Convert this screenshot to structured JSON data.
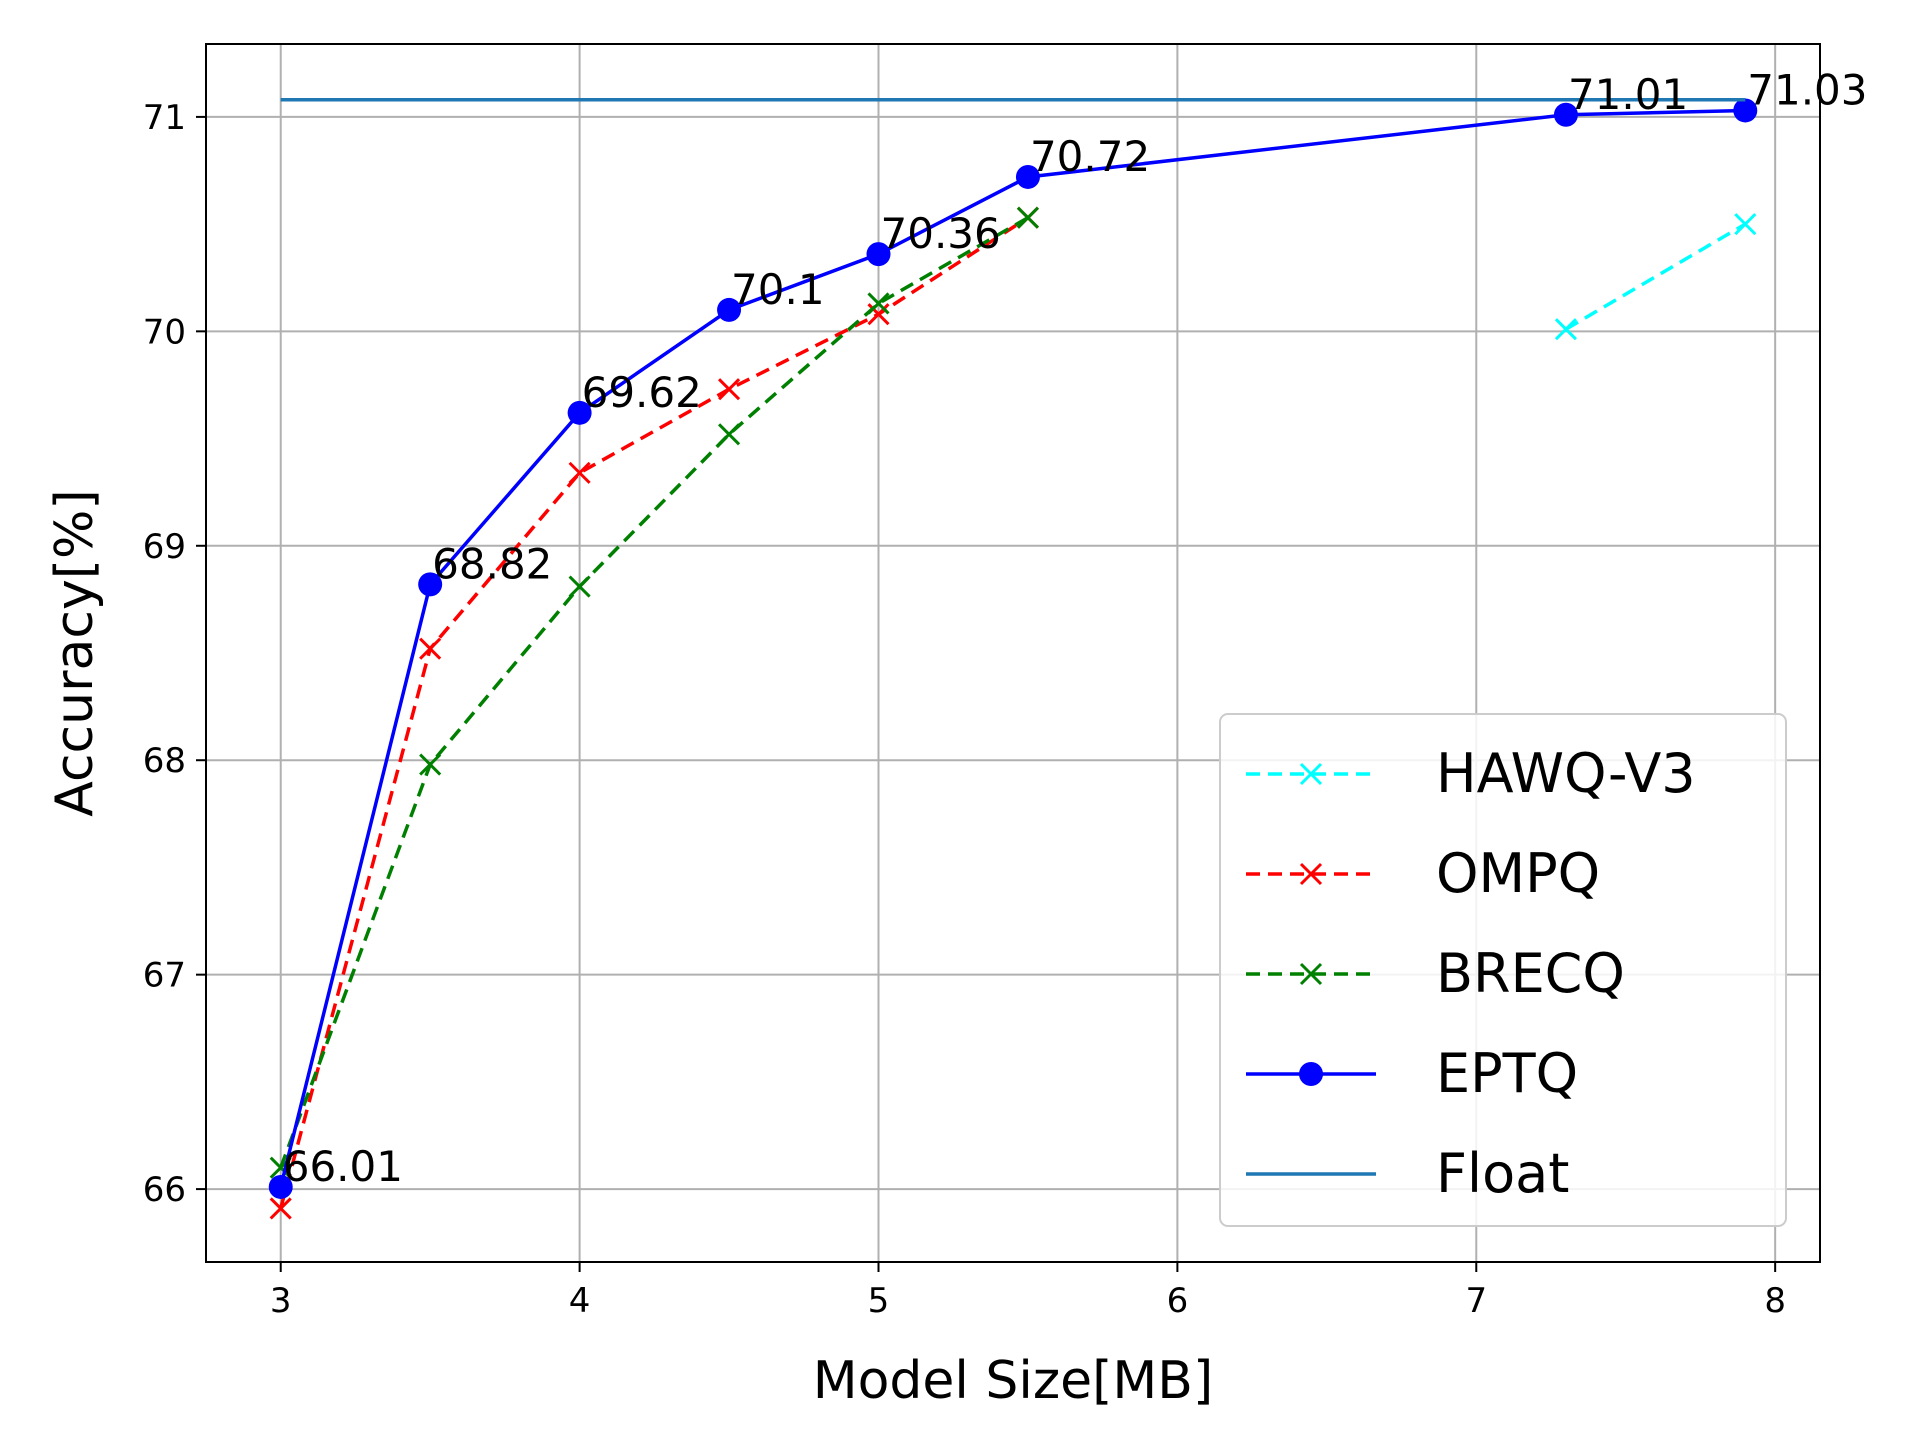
{
  "chart_data": {
    "type": "line",
    "title": "",
    "xlabel": "Model Size[MB]",
    "ylabel": "Accuracy[%]",
    "xlim": [
      2.75,
      8.15
    ],
    "ylim": [
      65.66,
      71.34
    ],
    "grid": true,
    "legend_position": "lower-right",
    "xticks": [
      3,
      4,
      5,
      6,
      7,
      8
    ],
    "yticks": [
      66,
      67,
      68,
      69,
      70,
      71
    ],
    "series": [
      {
        "name": "HAWQ-V3",
        "color": "#00ffff",
        "linestyle": "dashed",
        "marker": "x",
        "x": [
          7.3,
          7.9
        ],
        "y": [
          70.01,
          70.5
        ]
      },
      {
        "name": "OMPQ",
        "color": "#ff0000",
        "linestyle": "dashed",
        "marker": "x",
        "x": [
          3.0,
          3.5,
          4.0,
          4.5,
          5.0,
          5.5
        ],
        "y": [
          65.91,
          68.52,
          69.34,
          69.73,
          70.08,
          70.53
        ]
      },
      {
        "name": "BRECQ",
        "color": "#008000",
        "linestyle": "dashed",
        "marker": "x",
        "x": [
          3.0,
          3.5,
          4.0,
          4.5,
          5.0,
          5.5
        ],
        "y": [
          66.1,
          67.98,
          68.81,
          69.52,
          70.13,
          70.53
        ]
      },
      {
        "name": "EPTQ",
        "color": "#0000ff",
        "linestyle": "solid",
        "marker": "o",
        "x": [
          3.0,
          3.5,
          4.0,
          4.5,
          5.0,
          5.5,
          7.3,
          7.9
        ],
        "y": [
          66.01,
          68.82,
          69.62,
          70.1,
          70.36,
          70.72,
          71.01,
          71.03
        ],
        "labels": [
          "66.01",
          "68.82",
          "69.62",
          "70.1",
          "70.36",
          "70.72",
          "71.01",
          "71.03"
        ]
      },
      {
        "name": "Float",
        "color": "#1f77b4",
        "linestyle": "solid",
        "marker": "none",
        "x": [
          3.0,
          7.9
        ],
        "y": [
          71.08,
          71.08
        ]
      }
    ]
  }
}
